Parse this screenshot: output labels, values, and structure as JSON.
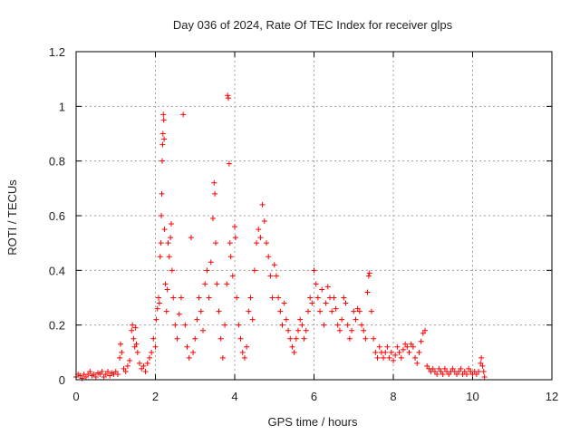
{
  "chart_data": {
    "type": "scatter",
    "title": "Day 036 of 2024, Rate Of TEC Index for receiver glps",
    "xlabel": "GPS time / hours",
    "ylabel": "ROTI / TECUs",
    "xlim": [
      0,
      12
    ],
    "ylim": [
      0,
      1.2
    ],
    "xticks": [
      "0",
      "2",
      "4",
      "6",
      "8",
      "10",
      "12"
    ],
    "yticks": [
      "0",
      "0.2",
      "0.4",
      "0.6",
      "0.8",
      "1",
      "1.2"
    ],
    "grid": true,
    "marker": "plus",
    "color": "#ff0000",
    "series": [
      {
        "name": "ROTI",
        "points": [
          [
            0.0,
            0.01
          ],
          [
            0.05,
            0.02
          ],
          [
            0.1,
            0.015
          ],
          [
            0.15,
            0.005
          ],
          [
            0.2,
            0.02
          ],
          [
            0.25,
            0.01
          ],
          [
            0.3,
            0.02
          ],
          [
            0.35,
            0.03
          ],
          [
            0.4,
            0.015
          ],
          [
            0.45,
            0.02
          ],
          [
            0.5,
            0.01
          ],
          [
            0.55,
            0.025
          ],
          [
            0.6,
            0.02
          ],
          [
            0.65,
            0.03
          ],
          [
            0.7,
            0.01
          ],
          [
            0.75,
            0.02
          ],
          [
            0.8,
            0.03
          ],
          [
            0.85,
            0.015
          ],
          [
            0.9,
            0.025
          ],
          [
            0.95,
            0.02
          ],
          [
            1.0,
            0.03
          ],
          [
            1.05,
            0.02
          ],
          [
            1.1,
            0.08
          ],
          [
            1.12,
            0.13
          ],
          [
            1.15,
            0.1
          ],
          [
            1.2,
            0.04
          ],
          [
            1.25,
            0.03
          ],
          [
            1.3,
            0.05
          ],
          [
            1.35,
            0.07
          ],
          [
            1.4,
            0.18
          ],
          [
            1.42,
            0.2
          ],
          [
            1.45,
            0.15
          ],
          [
            1.48,
            0.12
          ],
          [
            1.5,
            0.19
          ],
          [
            1.52,
            0.13
          ],
          [
            1.55,
            0.1
          ],
          [
            1.6,
            0.06
          ],
          [
            1.65,
            0.04
          ],
          [
            1.7,
            0.05
          ],
          [
            1.75,
            0.03
          ],
          [
            1.8,
            0.06
          ],
          [
            1.85,
            0.08
          ],
          [
            1.9,
            0.1
          ],
          [
            1.95,
            0.15
          ],
          [
            2.0,
            0.12
          ],
          [
            2.02,
            0.22
          ],
          [
            2.05,
            0.26
          ],
          [
            2.08,
            0.3
          ],
          [
            2.1,
            0.28
          ],
          [
            2.12,
            0.45
          ],
          [
            2.14,
            0.5
          ],
          [
            2.15,
            0.6
          ],
          [
            2.16,
            0.68
          ],
          [
            2.17,
            0.8
          ],
          [
            2.18,
            0.86
          ],
          [
            2.19,
            0.9
          ],
          [
            2.2,
            0.97
          ],
          [
            2.21,
            0.95
          ],
          [
            2.22,
            0.88
          ],
          [
            2.23,
            0.55
          ],
          [
            2.25,
            0.35
          ],
          [
            2.28,
            0.25
          ],
          [
            2.3,
            0.33
          ],
          [
            2.32,
            0.5
          ],
          [
            2.35,
            0.45
          ],
          [
            2.38,
            0.52
          ],
          [
            2.4,
            0.57
          ],
          [
            2.42,
            0.4
          ],
          [
            2.45,
            0.3
          ],
          [
            2.5,
            0.2
          ],
          [
            2.55,
            0.15
          ],
          [
            2.6,
            0.24
          ],
          [
            2.65,
            0.3
          ],
          [
            2.7,
            0.97
          ],
          [
            2.75,
            0.2
          ],
          [
            2.8,
            0.12
          ],
          [
            2.85,
            0.08
          ],
          [
            2.9,
            0.52
          ],
          [
            2.95,
            0.1
          ],
          [
            3.0,
            0.15
          ],
          [
            3.05,
            0.22
          ],
          [
            3.1,
            0.3
          ],
          [
            3.15,
            0.25
          ],
          [
            3.2,
            0.18
          ],
          [
            3.25,
            0.35
          ],
          [
            3.3,
            0.4
          ],
          [
            3.35,
            0.3
          ],
          [
            3.4,
            0.43
          ],
          [
            3.45,
            0.59
          ],
          [
            3.48,
            0.72
          ],
          [
            3.5,
            0.68
          ],
          [
            3.52,
            0.5
          ],
          [
            3.55,
            0.35
          ],
          [
            3.6,
            0.25
          ],
          [
            3.65,
            0.15
          ],
          [
            3.7,
            0.08
          ],
          [
            3.75,
            0.2
          ],
          [
            3.8,
            0.35
          ],
          [
            3.82,
            1.04
          ],
          [
            3.84,
            1.03
          ],
          [
            3.86,
            0.79
          ],
          [
            3.88,
            0.5
          ],
          [
            3.9,
            0.45
          ],
          [
            3.95,
            0.38
          ],
          [
            4.0,
            0.56
          ],
          [
            4.02,
            0.52
          ],
          [
            4.05,
            0.3
          ],
          [
            4.1,
            0.2
          ],
          [
            4.15,
            0.15
          ],
          [
            4.2,
            0.1
          ],
          [
            4.25,
            0.08
          ],
          [
            4.3,
            0.12
          ],
          [
            4.35,
            0.25
          ],
          [
            4.4,
            0.3
          ],
          [
            4.45,
            0.22
          ],
          [
            4.5,
            0.4
          ],
          [
            4.55,
            0.5
          ],
          [
            4.6,
            0.55
          ],
          [
            4.65,
            0.52
          ],
          [
            4.7,
            0.64
          ],
          [
            4.75,
            0.58
          ],
          [
            4.8,
            0.5
          ],
          [
            4.85,
            0.45
          ],
          [
            4.9,
            0.38
          ],
          [
            4.95,
            0.3
          ],
          [
            5.0,
            0.42
          ],
          [
            5.05,
            0.38
          ],
          [
            5.1,
            0.3
          ],
          [
            5.15,
            0.25
          ],
          [
            5.2,
            0.2
          ],
          [
            5.25,
            0.28
          ],
          [
            5.3,
            0.22
          ],
          [
            5.35,
            0.18
          ],
          [
            5.4,
            0.15
          ],
          [
            5.45,
            0.12
          ],
          [
            5.5,
            0.1
          ],
          [
            5.55,
            0.15
          ],
          [
            5.6,
            0.18
          ],
          [
            5.65,
            0.22
          ],
          [
            5.7,
            0.2
          ],
          [
            5.75,
            0.15
          ],
          [
            5.8,
            0.18
          ],
          [
            5.85,
            0.25
          ],
          [
            5.9,
            0.3
          ],
          [
            5.95,
            0.28
          ],
          [
            6.0,
            0.4
          ],
          [
            6.05,
            0.35
          ],
          [
            6.1,
            0.3
          ],
          [
            6.15,
            0.25
          ],
          [
            6.2,
            0.33
          ],
          [
            6.25,
            0.2
          ],
          [
            6.3,
            0.28
          ],
          [
            6.35,
            0.34
          ],
          [
            6.4,
            0.3
          ],
          [
            6.45,
            0.25
          ],
          [
            6.5,
            0.3
          ],
          [
            6.55,
            0.26
          ],
          [
            6.6,
            0.2
          ],
          [
            6.65,
            0.18
          ],
          [
            6.7,
            0.22
          ],
          [
            6.75,
            0.3
          ],
          [
            6.8,
            0.28
          ],
          [
            6.85,
            0.2
          ],
          [
            6.9,
            0.15
          ],
          [
            6.95,
            0.18
          ],
          [
            7.0,
            0.25
          ],
          [
            7.05,
            0.22
          ],
          [
            7.1,
            0.26
          ],
          [
            7.15,
            0.25
          ],
          [
            7.2,
            0.2
          ],
          [
            7.25,
            0.18
          ],
          [
            7.3,
            0.15
          ],
          [
            7.35,
            0.32
          ],
          [
            7.38,
            0.38
          ],
          [
            7.4,
            0.39
          ],
          [
            7.45,
            0.25
          ],
          [
            7.5,
            0.15
          ],
          [
            7.55,
            0.1
          ],
          [
            7.6,
            0.08
          ],
          [
            7.65,
            0.12
          ],
          [
            7.7,
            0.1
          ],
          [
            7.75,
            0.08
          ],
          [
            7.8,
            0.1
          ],
          [
            7.85,
            0.12
          ],
          [
            7.9,
            0.08
          ],
          [
            7.95,
            0.1
          ],
          [
            8.0,
            0.07
          ],
          [
            8.05,
            0.09
          ],
          [
            8.1,
            0.12
          ],
          [
            8.15,
            0.1
          ],
          [
            8.2,
            0.08
          ],
          [
            8.25,
            0.11
          ],
          [
            8.3,
            0.13
          ],
          [
            8.35,
            0.12
          ],
          [
            8.4,
            0.1
          ],
          [
            8.45,
            0.13
          ],
          [
            8.5,
            0.12
          ],
          [
            8.55,
            0.08
          ],
          [
            8.6,
            0.06
          ],
          [
            8.65,
            0.1
          ],
          [
            8.7,
            0.14
          ],
          [
            8.75,
            0.17
          ],
          [
            8.8,
            0.18
          ],
          [
            8.85,
            0.05
          ],
          [
            8.9,
            0.04
          ],
          [
            8.95,
            0.03
          ],
          [
            9.0,
            0.04
          ],
          [
            9.05,
            0.03
          ],
          [
            9.1,
            0.02
          ],
          [
            9.15,
            0.04
          ],
          [
            9.2,
            0.03
          ],
          [
            9.25,
            0.02
          ],
          [
            9.3,
            0.04
          ],
          [
            9.35,
            0.03
          ],
          [
            9.4,
            0.02
          ],
          [
            9.45,
            0.03
          ],
          [
            9.5,
            0.04
          ],
          [
            9.55,
            0.03
          ],
          [
            9.6,
            0.02
          ],
          [
            9.65,
            0.03
          ],
          [
            9.7,
            0.04
          ],
          [
            9.75,
            0.02
          ],
          [
            9.8,
            0.03
          ],
          [
            9.85,
            0.02
          ],
          [
            9.9,
            0.04
          ],
          [
            9.95,
            0.03
          ],
          [
            10.0,
            0.02
          ],
          [
            10.05,
            0.03
          ],
          [
            10.1,
            0.02
          ],
          [
            10.15,
            0.03
          ],
          [
            10.2,
            0.06
          ],
          [
            10.22,
            0.08
          ],
          [
            10.25,
            0.05
          ],
          [
            10.28,
            0.03
          ],
          [
            10.3,
            0.01
          ]
        ]
      }
    ]
  }
}
